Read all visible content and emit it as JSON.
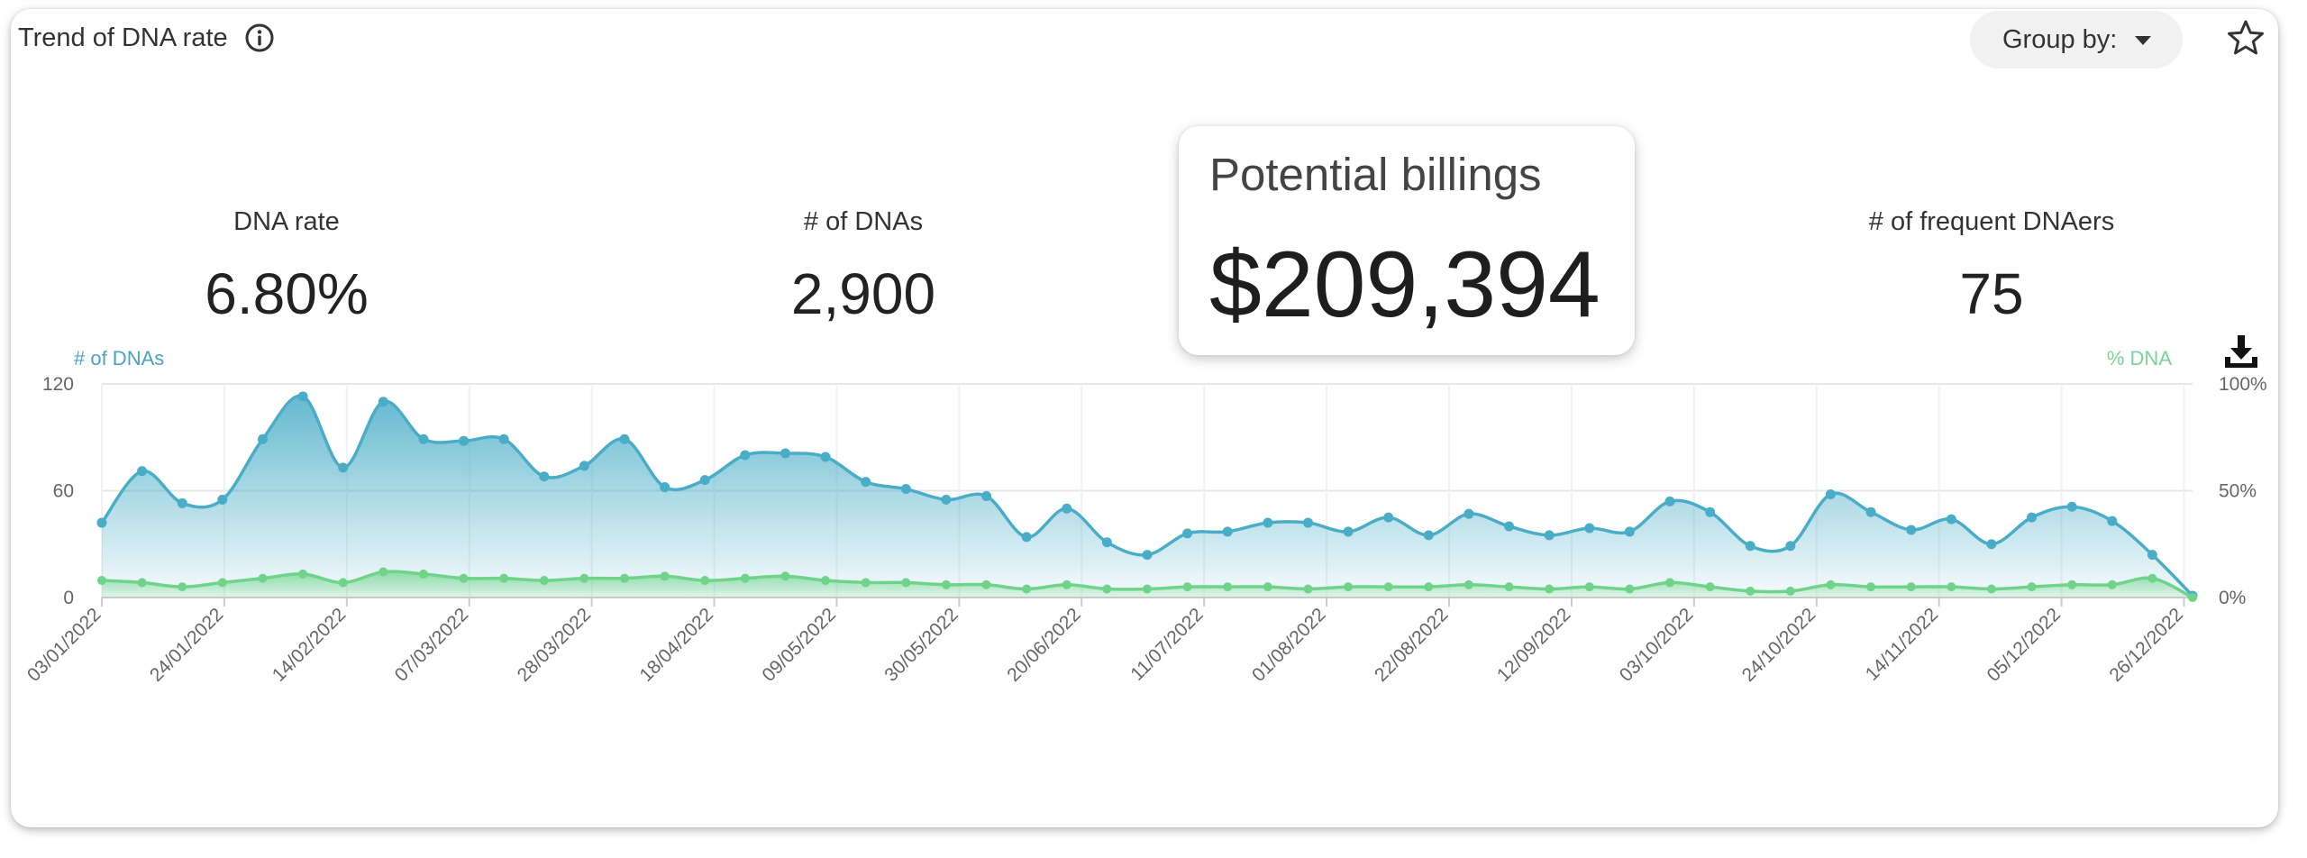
{
  "header": {
    "title": "Trend of DNA rate",
    "group_by_label": "Group by:"
  },
  "stats": {
    "dna_rate": {
      "label": "DNA rate",
      "value": "6.80%"
    },
    "num_dnas": {
      "label": "# of DNAs",
      "value": "2,900"
    },
    "potential_billings": {
      "label": "Potential billings",
      "value": "$209,394"
    },
    "frequent_dnaers": {
      "label": "# of frequent DNAers",
      "value": "75"
    }
  },
  "colors": {
    "dna_series": "#4aadc7",
    "pct_series": "#6fd48a",
    "grid": "#e6e6e6"
  },
  "icons": {
    "info": "info-icon",
    "caret": "caret-down-icon",
    "star": "star-icon",
    "download": "download-icon"
  },
  "chart_data": {
    "type": "area",
    "left_axis": {
      "title": "# of DNAs",
      "range": [
        0,
        120
      ],
      "ticks": [
        "0",
        "60",
        "120"
      ]
    },
    "right_axis": {
      "title": "% DNA",
      "range": [
        0,
        100
      ],
      "ticks": [
        "0%",
        "50%",
        "100%"
      ]
    },
    "x_tick_labels": [
      "03/01/2022",
      "24/01/2022",
      "14/02/2022",
      "07/03/2022",
      "28/03/2022",
      "18/04/2022",
      "09/05/2022",
      "30/05/2022",
      "20/06/2022",
      "11/07/2022",
      "01/08/2022",
      "22/08/2022",
      "12/09/2022",
      "03/10/2022",
      "24/10/2022",
      "14/11/2022",
      "05/12/2022",
      "26/12/2022"
    ],
    "grid": true,
    "series": [
      {
        "name": "# of DNAs",
        "axis": "left",
        "type": "area",
        "values": [
          42,
          71,
          53,
          55,
          89,
          113,
          73,
          110,
          89,
          88,
          89,
          68,
          74,
          89,
          62,
          66,
          80,
          81,
          79,
          65,
          61,
          55,
          57,
          34,
          50,
          31,
          24,
          36,
          37,
          42,
          42,
          37,
          45,
          35,
          47,
          40,
          35,
          39,
          37,
          54,
          48,
          29,
          29,
          58,
          48,
          38,
          44,
          30,
          45,
          51,
          43,
          24,
          1
        ]
      },
      {
        "name": "% DNA",
        "axis": "right",
        "type": "area",
        "values": [
          8,
          7,
          5,
          7,
          9,
          11,
          7,
          12,
          11,
          9,
          9,
          8,
          9,
          9,
          10,
          8,
          9,
          10,
          8,
          7,
          7,
          6,
          6,
          4,
          6,
          4,
          4,
          5,
          5,
          5,
          4,
          5,
          5,
          5,
          6,
          5,
          4,
          5,
          4,
          7,
          5,
          3,
          3,
          6,
          5,
          5,
          5,
          4,
          5,
          6,
          6,
          9,
          0
        ]
      }
    ]
  }
}
